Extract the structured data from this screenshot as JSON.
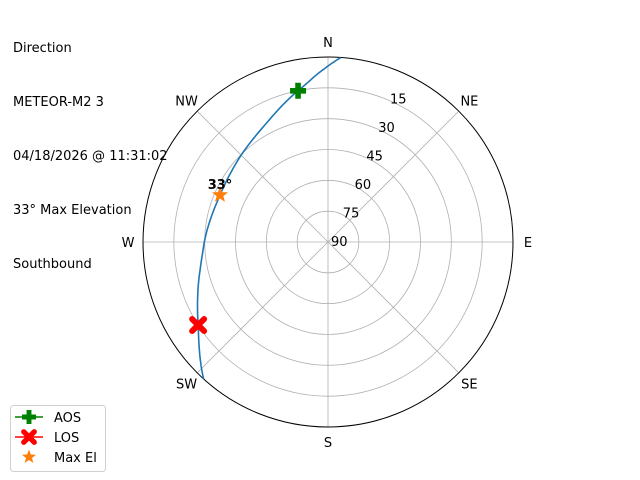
{
  "chart_data": {
    "type": "polar-line",
    "title_lines": [
      "Direction",
      "METEOR-M2 3",
      "04/18/2026 @ 11:31:02",
      "33° Max Elevation",
      "Southbound"
    ],
    "direction_labels": [
      {
        "label": "N",
        "az": 0
      },
      {
        "label": "NE",
        "az": 45
      },
      {
        "label": "E",
        "az": 90
      },
      {
        "label": "SE",
        "az": 135
      },
      {
        "label": "S",
        "az": 180
      },
      {
        "label": "SW",
        "az": 225
      },
      {
        "label": "W",
        "az": 270
      },
      {
        "label": "NW",
        "az": 315
      }
    ],
    "radial_ticks": [
      "15",
      "30",
      "45",
      "60",
      "75",
      "90"
    ],
    "radial_tick_values": [
      15,
      30,
      45,
      60,
      75,
      90
    ],
    "elevation_range": [
      0,
      90
    ],
    "grid": true,
    "track": {
      "color": "#1f77b4",
      "points_az_el": [
        [
          4,
          0
        ],
        [
          357.3,
          7.2
        ],
        [
          348.8,
          15
        ],
        [
          331.7,
          25.3
        ],
        [
          312.3,
          30.8
        ],
        [
          293.5,
          32.7
        ],
        [
          275.7,
          30.9
        ],
        [
          257.7,
          26.3
        ],
        [
          237.4,
          15
        ],
        [
          222.2,
          0
        ]
      ]
    },
    "markers": [
      {
        "name": "AOS",
        "az": 348.8,
        "el": 15,
        "color": "#008000",
        "shape": "plus"
      },
      {
        "name": "LOS",
        "az": 237.4,
        "el": 15,
        "color": "#ff0000",
        "shape": "x"
      },
      {
        "name": "Max El",
        "az": 293.5,
        "el": 32.7,
        "color": "#ff7f0e",
        "shape": "star"
      }
    ],
    "annotation": {
      "text": "33°",
      "az": 293.5,
      "el": 32.7
    },
    "legend_placement": "bottom-left"
  }
}
